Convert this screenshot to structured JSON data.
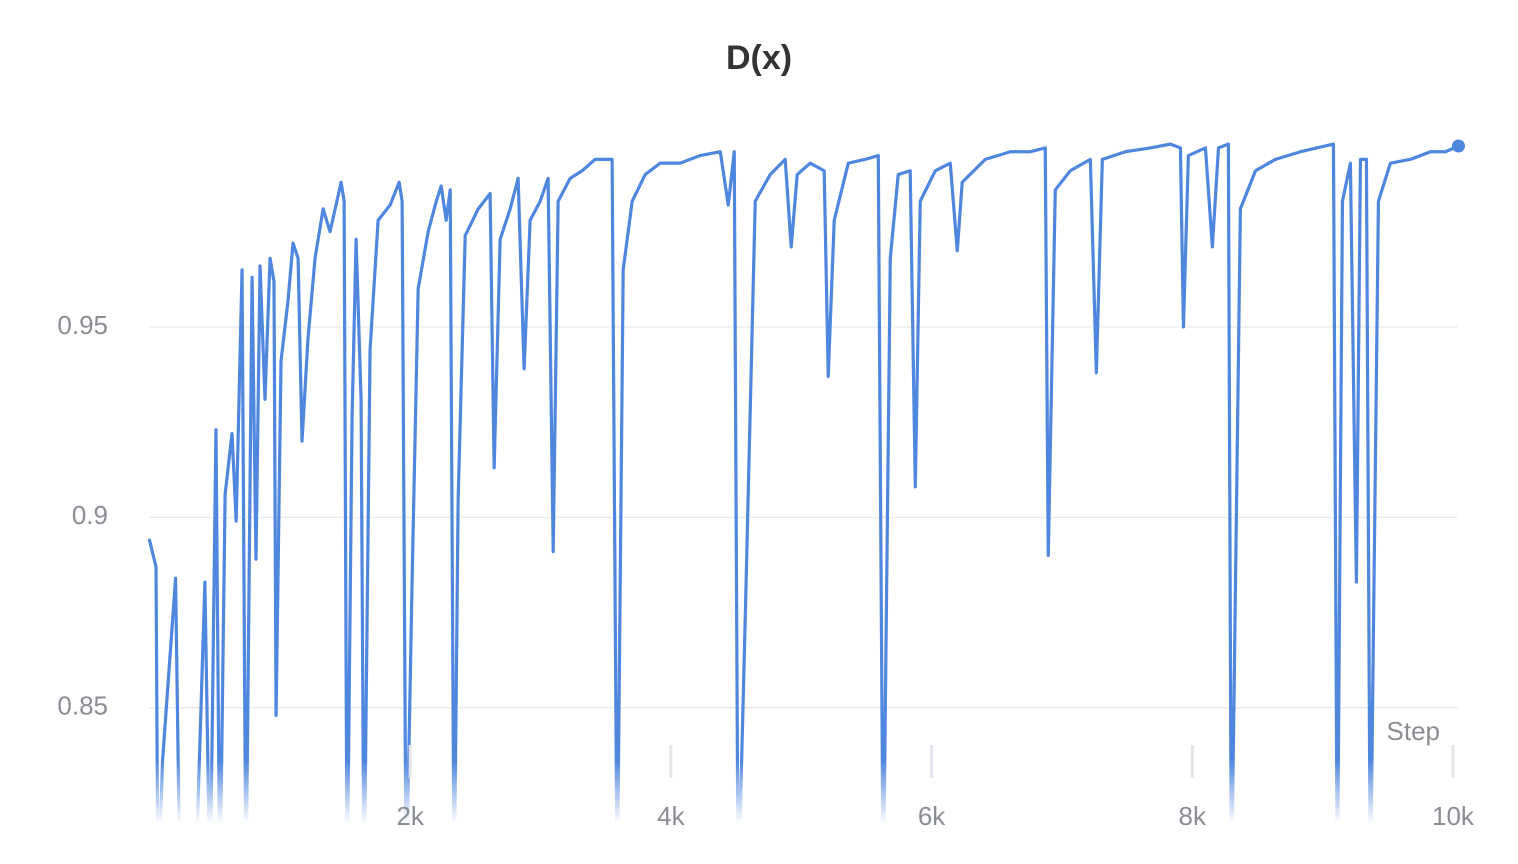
{
  "chart_data": {
    "type": "line",
    "title": "D(x)",
    "x_label": "Step",
    "color": "#4f86de",
    "grid": true,
    "xlim": [
      0,
      10050
    ],
    "ylim": [
      0.82,
      1.0
    ],
    "xticks": [
      {
        "value": 2000,
        "label": "2k"
      },
      {
        "value": 4000,
        "label": "4k"
      },
      {
        "value": 6000,
        "label": "6k"
      },
      {
        "value": 8000,
        "label": "8k"
      },
      {
        "value": 10000,
        "label": "10k"
      }
    ],
    "yticks": [
      0.85,
      0.9,
      0.95
    ],
    "x": [
      0,
      50,
      65,
      100,
      200,
      235,
      350,
      425,
      465,
      510,
      540,
      580,
      633,
      665,
      710,
      740,
      787,
      817,
      848,
      886,
      925,
      955,
      971,
      1009,
      1063,
      1101,
      1140,
      1170,
      1216,
      1270,
      1332,
      1385,
      1431,
      1470,
      1493,
      1516,
      1554,
      1585,
      1623,
      1646,
      1692,
      1754,
      1846,
      1915,
      1938,
      1969,
      2015,
      2061,
      2138,
      2200,
      2238,
      2276,
      2307,
      2337,
      2368,
      2422,
      2522,
      2613,
      2644,
      2690,
      2767,
      2828,
      2874,
      2920,
      2997,
      3058,
      3097,
      3135,
      3227,
      3319,
      3419,
      3549,
      3588,
      3634,
      3703,
      3803,
      3918,
      4072,
      4225,
      4379,
      4440,
      4486,
      4516,
      4570,
      4647,
      4762,
      4877,
      4923,
      4969,
      5069,
      5176,
      5207,
      5253,
      5361,
      5491,
      5591,
      5629,
      5683,
      5744,
      5836,
      5875,
      5913,
      6028,
      6143,
      6197,
      6235,
      6412,
      6604,
      6757,
      6872,
      6895,
      6949,
      7064,
      7218,
      7264,
      7310,
      7487,
      7679,
      7832,
      7909,
      7932,
      7970,
      8101,
      8154,
      8201,
      8277,
      8300,
      8369,
      8485,
      8638,
      8830,
      9083,
      9113,
      9152,
      9213,
      9259,
      9290,
      9336,
      9366,
      9428,
      9520,
      9674,
      9827,
      9942,
      10042
    ],
    "values": [
      0.894,
      0.887,
      0.8,
      0.836,
      0.884,
      0.8,
      0.8,
      0.883,
      0.8,
      0.923,
      0.8,
      0.906,
      0.922,
      0.899,
      0.965,
      0.8,
      0.963,
      0.889,
      0.966,
      0.931,
      0.968,
      0.962,
      0.848,
      0.941,
      0.957,
      0.972,
      0.968,
      0.92,
      0.947,
      0.968,
      0.981,
      0.975,
      0.982,
      0.988,
      0.983,
      0.8,
      0.926,
      0.973,
      0.931,
      0.8,
      0.944,
      0.978,
      0.982,
      0.988,
      0.983,
      0.8,
      0.884,
      0.96,
      0.975,
      0.983,
      0.987,
      0.978,
      0.986,
      0.8,
      0.905,
      0.974,
      0.981,
      0.985,
      0.913,
      0.973,
      0.981,
      0.989,
      0.939,
      0.978,
      0.983,
      0.989,
      0.891,
      0.983,
      0.989,
      0.991,
      0.994,
      0.994,
      0.8,
      0.965,
      0.983,
      0.99,
      0.993,
      0.993,
      0.995,
      0.996,
      0.982,
      0.996,
      0.8,
      0.873,
      0.983,
      0.99,
      0.994,
      0.971,
      0.99,
      0.993,
      0.991,
      0.937,
      0.978,
      0.993,
      0.994,
      0.995,
      0.8,
      0.968,
      0.99,
      0.991,
      0.908,
      0.983,
      0.991,
      0.993,
      0.97,
      0.988,
      0.994,
      0.996,
      0.996,
      0.997,
      0.89,
      0.986,
      0.991,
      0.994,
      0.938,
      0.994,
      0.996,
      0.997,
      0.998,
      0.997,
      0.95,
      0.995,
      0.997,
      0.971,
      0.997,
      0.998,
      0.8,
      0.981,
      0.991,
      0.994,
      0.996,
      0.998,
      0.8,
      0.983,
      0.993,
      0.883,
      0.994,
      0.994,
      0.8,
      0.983,
      0.993,
      0.994,
      0.996,
      0.996,
      0.9975
    ]
  }
}
